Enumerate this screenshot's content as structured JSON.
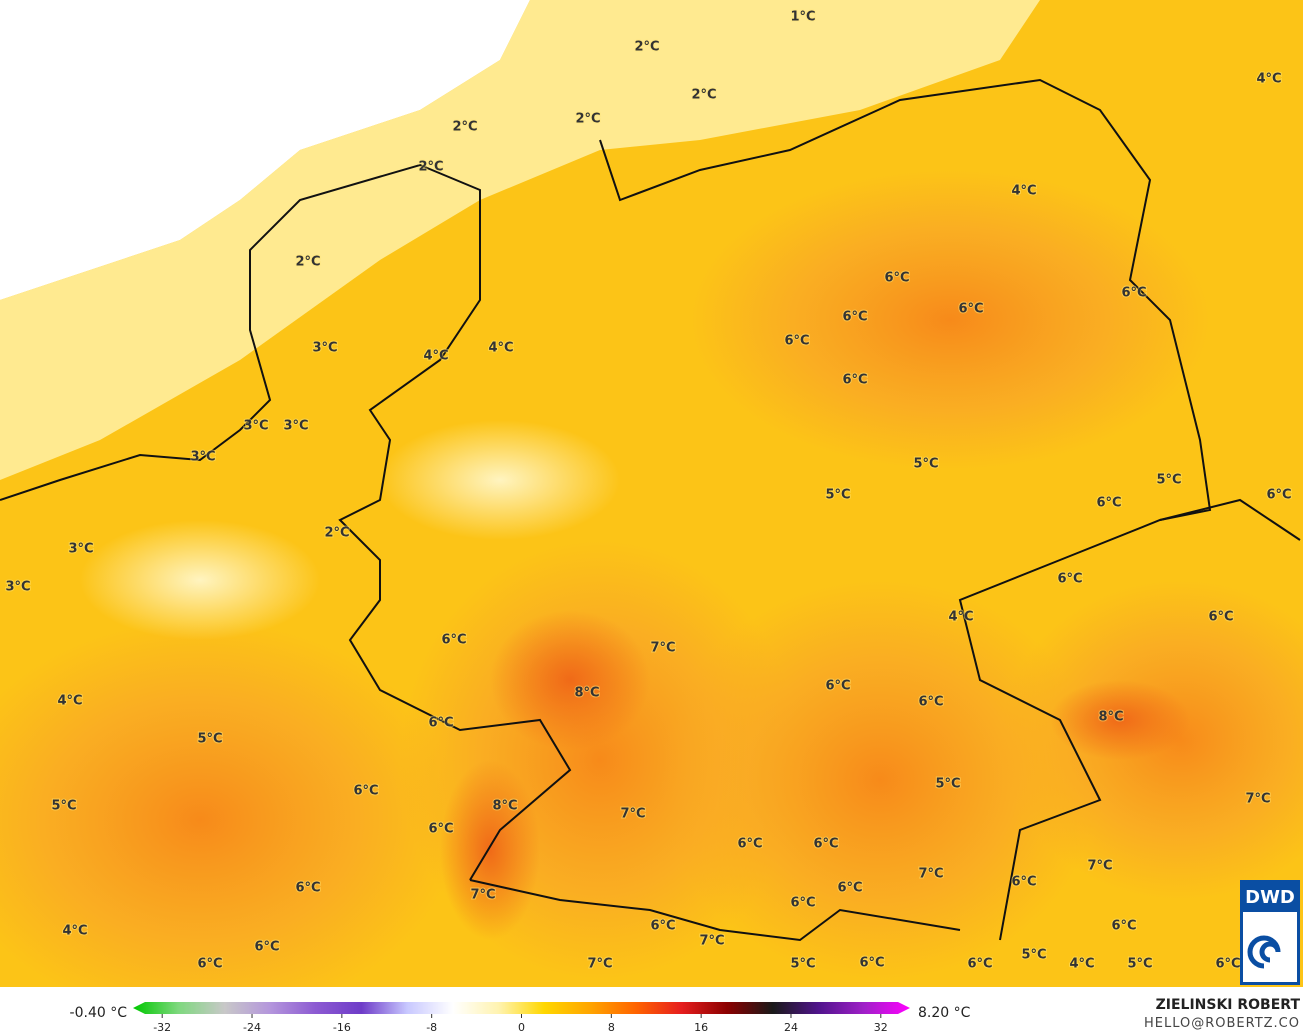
{
  "map": {
    "labels": [
      "2°C",
      "1°C",
      "2°C",
      "2°C",
      "2°C",
      "2°C",
      "4°C",
      "4°C",
      "2°C",
      "6°C",
      "6°C",
      "6°C",
      "6°C",
      "6°C",
      "3°C",
      "4°C",
      "4°C",
      "6°C",
      "3°C",
      "3°C",
      "3°C",
      "5°C",
      "5°C",
      "5°C",
      "6°C",
      "6°C",
      "2°C",
      "3°C",
      "6°C",
      "3°C",
      "6°C",
      "4°C",
      "6°C",
      "7°C",
      "8°C",
      "6°C",
      "6°C",
      "4°C",
      "8°C",
      "6°C",
      "5°C",
      "5°C",
      "6°C",
      "7°C",
      "5°C",
      "8°C",
      "7°C",
      "6°C",
      "6°C",
      "6°C",
      "7°C",
      "7°C",
      "6°C",
      "6°C",
      "6°C",
      "7°C",
      "6°C",
      "6°C",
      "4°C",
      "6°C",
      "7°C",
      "6°C",
      "5°C",
      "6°C",
      "7°C",
      "5°C",
      "6°C",
      "6°C",
      "4°C",
      "5°C",
      "6°C"
    ],
    "logo": "DWD"
  },
  "colorbar": {
    "min_label": "-0.40 °C",
    "max_label": "8.20 °C",
    "lim": [
      -34.6,
      34.6
    ],
    "ticks": [
      -32,
      -24,
      -16,
      -8,
      0,
      8,
      16,
      24,
      32
    ],
    "colors": [
      "#00c800",
      "#7fd87f",
      "#c8c8c8",
      "#b496dc",
      "#8c5ad2",
      "#6e3cc8",
      "#c8c8ff",
      "#ffffff",
      "#fff3b0",
      "#ffd700",
      "#ffa500",
      "#ff6400",
      "#e61e1e",
      "#8b0000",
      "#1a1a1a",
      "#50148c",
      "#a020c8",
      "#ff00ff"
    ]
  },
  "credit": {
    "name": "ZIELINSKI ROBERT",
    "contact": "HELLO@ROBERTZ.CO"
  }
}
